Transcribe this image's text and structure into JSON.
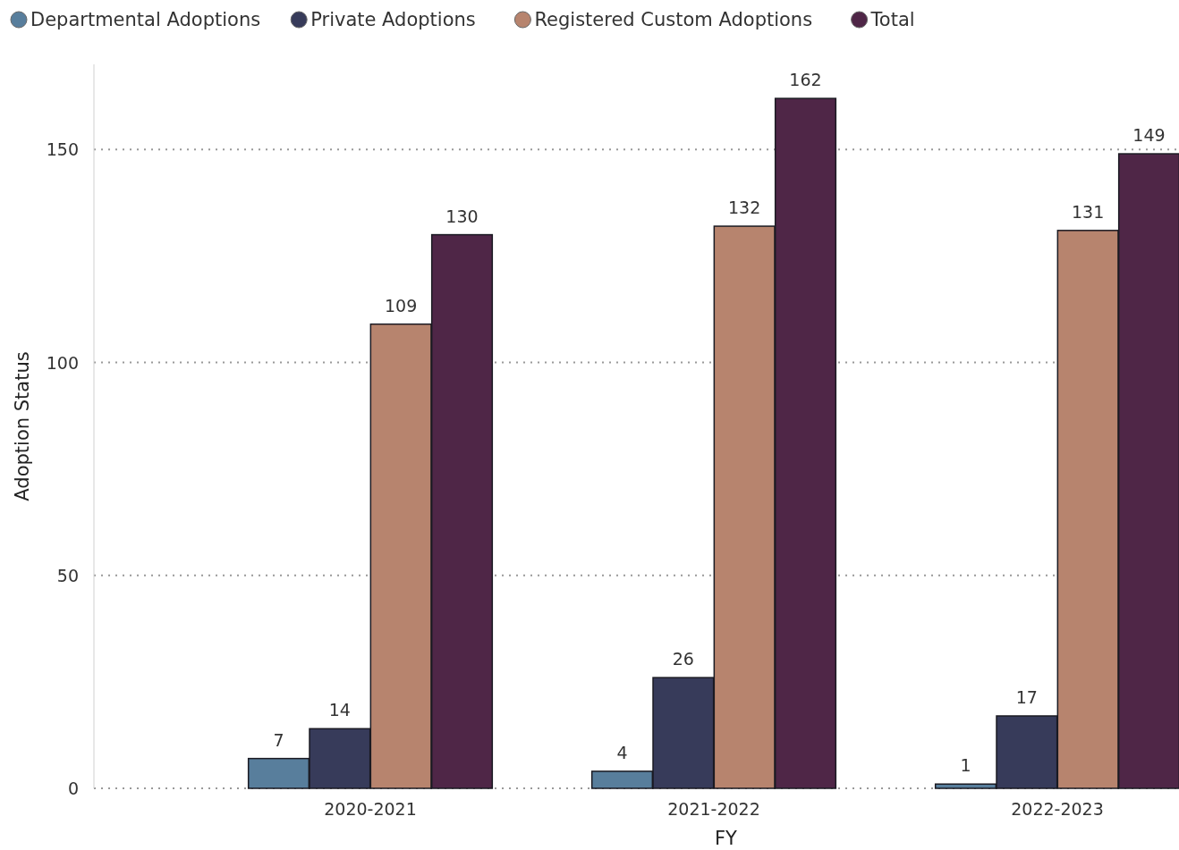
{
  "chart_data": {
    "type": "bar",
    "xlabel": "FY",
    "ylabel": "Adoption Status",
    "categories": [
      "2020-2021",
      "2021-2022",
      "2022-2023"
    ],
    "series": [
      {
        "name": "Departmental Adoptions",
        "color": "#587e9c",
        "values": [
          7,
          4,
          1
        ]
      },
      {
        "name": "Private Adoptions",
        "color": "#373b5a",
        "values": [
          14,
          26,
          17
        ]
      },
      {
        "name": "Registered Custom Adoptions",
        "color": "#b7846e",
        "values": [
          109,
          132,
          131
        ]
      },
      {
        "name": "Total",
        "color": "#4f2647",
        "values": [
          130,
          162,
          149
        ]
      }
    ],
    "ylim": [
      0,
      170
    ],
    "yticks": [
      0,
      50,
      100,
      150
    ],
    "grid": "y",
    "legend": "top left",
    "data_labels": true
  }
}
